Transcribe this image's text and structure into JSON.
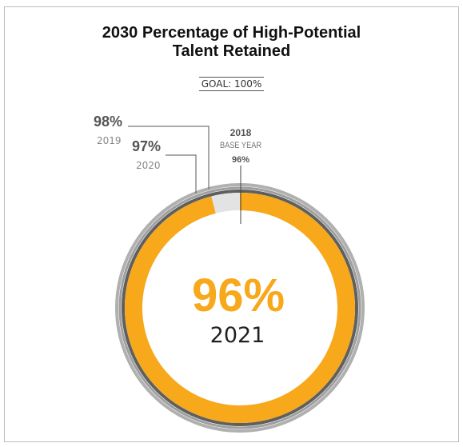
{
  "chart_data": {
    "type": "radial",
    "title_lines": [
      "2030 Percentage of High-Potential",
      "Talent Retained"
    ],
    "subtitle": "GOAL: 100%",
    "center": {
      "value_label": "96%",
      "year_label": "2021"
    },
    "series": [
      {
        "year": "2018",
        "value": 96,
        "label_value": "96%",
        "label_year": "2018",
        "label_note": "BASE YEAR",
        "color": "#b0b0b0"
      },
      {
        "year": "2019",
        "value": 98,
        "label_value": "98%",
        "label_year": "2019",
        "color": "#9e9e9e"
      },
      {
        "year": "2020",
        "value": 97,
        "label_value": "97%",
        "label_year": "2020",
        "color": "#5f5f5f"
      },
      {
        "year": "2021",
        "value": 96,
        "label_value": "96%",
        "label_year": "2021",
        "color": "#f7a81b",
        "remainder_color": "#e3e3e3"
      }
    ]
  }
}
